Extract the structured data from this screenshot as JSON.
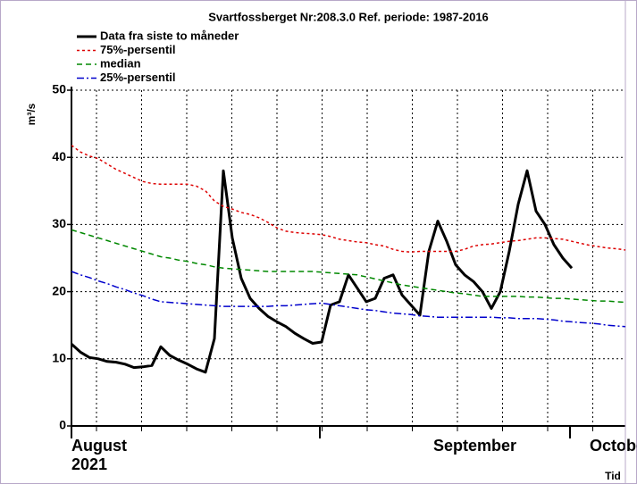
{
  "chart_data": {
    "type": "line",
    "title": "Svartfossberget Nr:208.3.0 Ref. periode: 1987-2016",
    "y_label": "m³/s",
    "x_label": "Tid",
    "x_month_labels": [
      "August",
      "September",
      "October"
    ],
    "x_year_label": "2021",
    "ylim": [
      0,
      50
    ],
    "yticks": [
      0,
      10,
      20,
      30,
      40,
      50
    ],
    "grid": true,
    "legend": "top-left",
    "series": [
      {
        "name": "Data fra siste to måneder",
        "color": "#000000",
        "values": [
          12.2,
          11,
          10.2,
          10,
          9.6,
          9.5,
          9.2,
          8.7,
          8.8,
          9,
          11.8,
          10.5,
          9.8,
          9.2,
          8.5,
          8,
          13,
          38,
          28,
          22,
          19,
          17.5,
          16.3,
          15.5,
          14.8,
          13.8,
          13,
          12.3,
          12.5,
          18,
          18.5,
          22.5,
          20.5,
          18.5,
          19,
          22,
          22.5,
          19.5,
          18,
          16.5,
          26,
          30.5,
          27.5,
          24,
          22.5,
          21.5,
          20,
          17.5,
          20,
          26,
          33,
          38,
          32,
          30,
          27,
          25,
          23.5,
          null,
          null,
          null,
          null,
          null,
          null
        ]
      },
      {
        "name": "75%-persentil",
        "color": "#dd0000",
        "values": [
          41.8,
          40.8,
          40.2,
          39.8,
          39,
          38.2,
          37.6,
          37,
          36.4,
          36.1,
          36,
          36,
          36,
          36,
          35.7,
          35,
          33.5,
          32.7,
          32.3,
          31.8,
          31.5,
          31,
          30.3,
          29.5,
          29,
          28.8,
          28.7,
          28.6,
          28.5,
          28.2,
          27.8,
          27.6,
          27.4,
          27.3,
          27,
          26.8,
          26.3,
          26,
          25.9,
          26,
          26,
          26,
          26,
          26,
          26.3,
          26.8,
          27,
          27.1,
          27.3,
          27.5,
          27.6,
          27.8,
          28,
          28,
          27.9,
          27.8,
          27.5,
          27.2,
          26.9,
          26.7,
          26.5,
          26.4,
          26.2
        ]
      },
      {
        "name": "median",
        "color": "#008800",
        "values": [
          29.2,
          28.8,
          28.4,
          28,
          27.6,
          27.2,
          26.8,
          26.4,
          26,
          25.6,
          25.2,
          25,
          24.7,
          24.5,
          24.2,
          24,
          23.7,
          23.5,
          23.4,
          23.3,
          23.2,
          23.1,
          23,
          23,
          23,
          23,
          23,
          23,
          22.9,
          22.8,
          22.7,
          22.6,
          22.5,
          22.2,
          21.9,
          21.6,
          21.3,
          21,
          20.8,
          20.6,
          20.4,
          20.2,
          20,
          19.8,
          19.7,
          19.5,
          19.3,
          19.3,
          19.3,
          19.3,
          19.3,
          19.2,
          19.2,
          19.1,
          19,
          19,
          18.9,
          18.8,
          18.7,
          18.6,
          18.6,
          18.5,
          18.4
        ]
      },
      {
        "name": "25%-persentil",
        "color": "#0000cc",
        "values": [
          23,
          22.5,
          22.1,
          21.6,
          21.2,
          20.7,
          20.3,
          19.8,
          19.4,
          18.9,
          18.5,
          18.4,
          18.3,
          18.2,
          18.1,
          18,
          17.9,
          17.8,
          17.8,
          17.8,
          17.8,
          17.8,
          17.8,
          17.9,
          17.9,
          18,
          18.1,
          18.2,
          18.3,
          18.1,
          17.9,
          17.7,
          17.5,
          17.3,
          17.2,
          17,
          16.8,
          16.7,
          16.6,
          16.4,
          16.3,
          16.2,
          16.2,
          16.2,
          16.2,
          16.2,
          16.2,
          16.2,
          16.1,
          16.1,
          16,
          16,
          16,
          15.9,
          15.8,
          15.6,
          15.5,
          15.4,
          15.3,
          15.2,
          15,
          14.9,
          14.8
        ]
      }
    ]
  }
}
